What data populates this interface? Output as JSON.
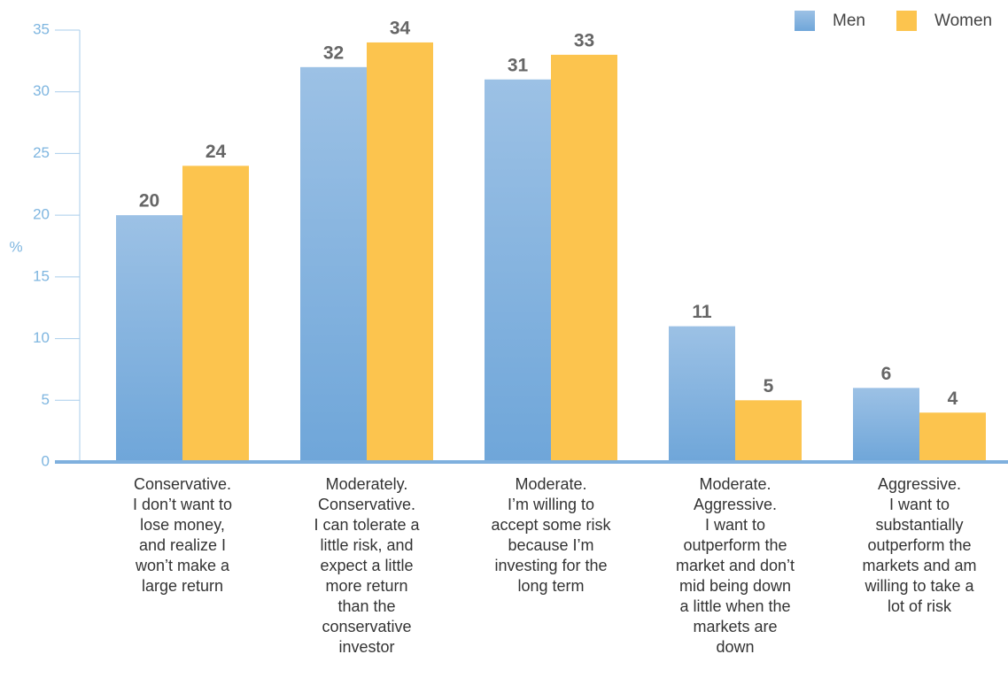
{
  "chart_data": {
    "type": "bar",
    "y_label": "%",
    "categories": [
      [
        "Conservative.",
        "I don’t want to",
        "lose money,",
        "and realize I",
        "won’t make a",
        "large return"
      ],
      [
        "Moderately.",
        "Conservative.",
        "I can tolerate a",
        "little risk, and",
        "expect a little",
        "more return",
        "than the",
        "conservative",
        "investor"
      ],
      [
        "Moderate.",
        "I’m willing to",
        "accept some risk",
        "because I’m",
        "investing for the",
        "long term"
      ],
      [
        "Moderate.",
        "Aggressive.",
        "I want to",
        "outperform the",
        "market and don’t",
        "mid being down",
        "a little when the",
        "markets are",
        "down"
      ],
      [
        "Aggressive.",
        "I want to",
        "substantially",
        "outperform the",
        "markets and am",
        "willing to take a",
        "lot of risk"
      ]
    ],
    "series": [
      {
        "name": "Men",
        "color": "#7fb0de",
        "values": [
          20,
          32,
          31,
          11,
          6
        ]
      },
      {
        "name": "Women",
        "color": "#fcc44e",
        "values": [
          24,
          34,
          33,
          5,
          4
        ]
      }
    ],
    "ylim": [
      0,
      35
    ],
    "yticks": [
      0,
      5,
      10,
      15,
      20,
      25,
      30,
      35
    ],
    "legend": "top-right"
  }
}
